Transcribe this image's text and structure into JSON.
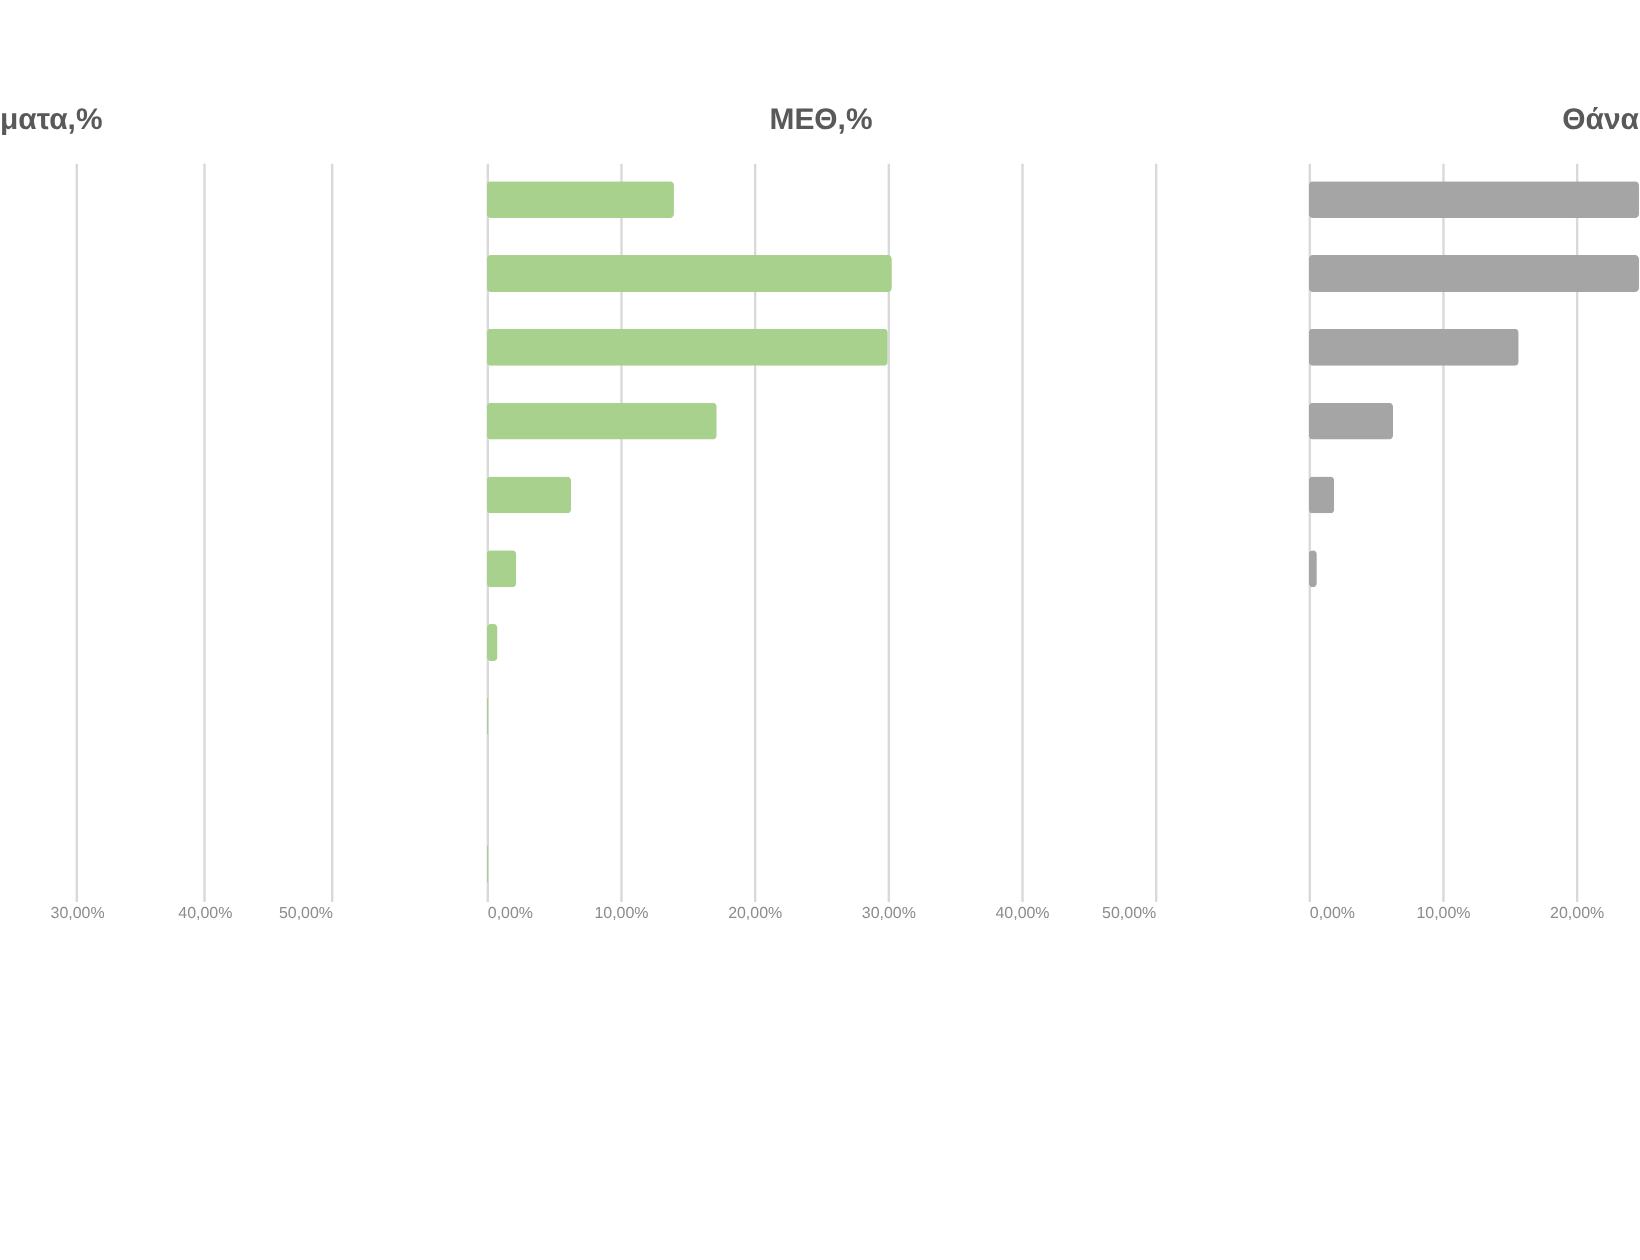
{
  "chart_data": [
    {
      "type": "bar",
      "title": "ματα,%",
      "orientation": "horizontal",
      "categories": [
        null,
        null,
        null,
        null,
        null,
        null,
        null,
        null,
        null,
        null
      ],
      "series": [
        {
          "color": "#a9d18e",
          "values": [
            null,
            null,
            null,
            null,
            null,
            null,
            null,
            null,
            null,
            null
          ]
        }
      ],
      "xlim": [
        24,
        50
      ],
      "xticks": [
        {
          "value": 30,
          "label": "30,00%"
        },
        {
          "value": 40,
          "label": "40,00%"
        },
        {
          "value": 50,
          "label": "50,00%"
        }
      ],
      "grid": "x",
      "tick_labels": "x"
    },
    {
      "type": "bar",
      "title": "ΜΕΘ,%",
      "orientation": "horizontal",
      "categories": [
        null,
        null,
        null,
        null,
        null,
        null,
        null,
        null,
        null,
        null
      ],
      "series": [
        {
          "color": "#a9d18e",
          "values": [
            14,
            30.3,
            30,
            17.2,
            6.3,
            2.2,
            0.8,
            0.1,
            0,
            0.1
          ]
        }
      ],
      "xlim": [
        0,
        50
      ],
      "xticks": [
        {
          "value": 0,
          "label": "0,00%"
        },
        {
          "value": 10,
          "label": "10,00%"
        },
        {
          "value": 20,
          "label": "20,00%"
        },
        {
          "value": 30,
          "label": "30,00%"
        },
        {
          "value": 40,
          "label": "40,00%"
        },
        {
          "value": 50,
          "label": "50,00%"
        }
      ],
      "grid": "x",
      "tick_labels": "x"
    },
    {
      "type": "bar",
      "title": "Θάνα",
      "orientation": "horizontal",
      "categories": [
        null,
        null,
        null,
        null,
        null,
        null,
        null,
        null,
        null,
        null
      ],
      "series": [
        {
          "color": "#a5a5a5",
          "values": [
            24.7,
            24.7,
            15.7,
            6.3,
            1.9,
            0.6,
            null,
            0,
            0,
            0
          ]
        }
      ],
      "xlim": [
        0,
        24.7
      ],
      "xticks": [
        {
          "value": 0,
          "label": "0,00%"
        },
        {
          "value": 10,
          "label": "10,00%"
        },
        {
          "value": 20,
          "label": "20,00%"
        }
      ],
      "grid": "x",
      "tick_labels": "x"
    }
  ]
}
